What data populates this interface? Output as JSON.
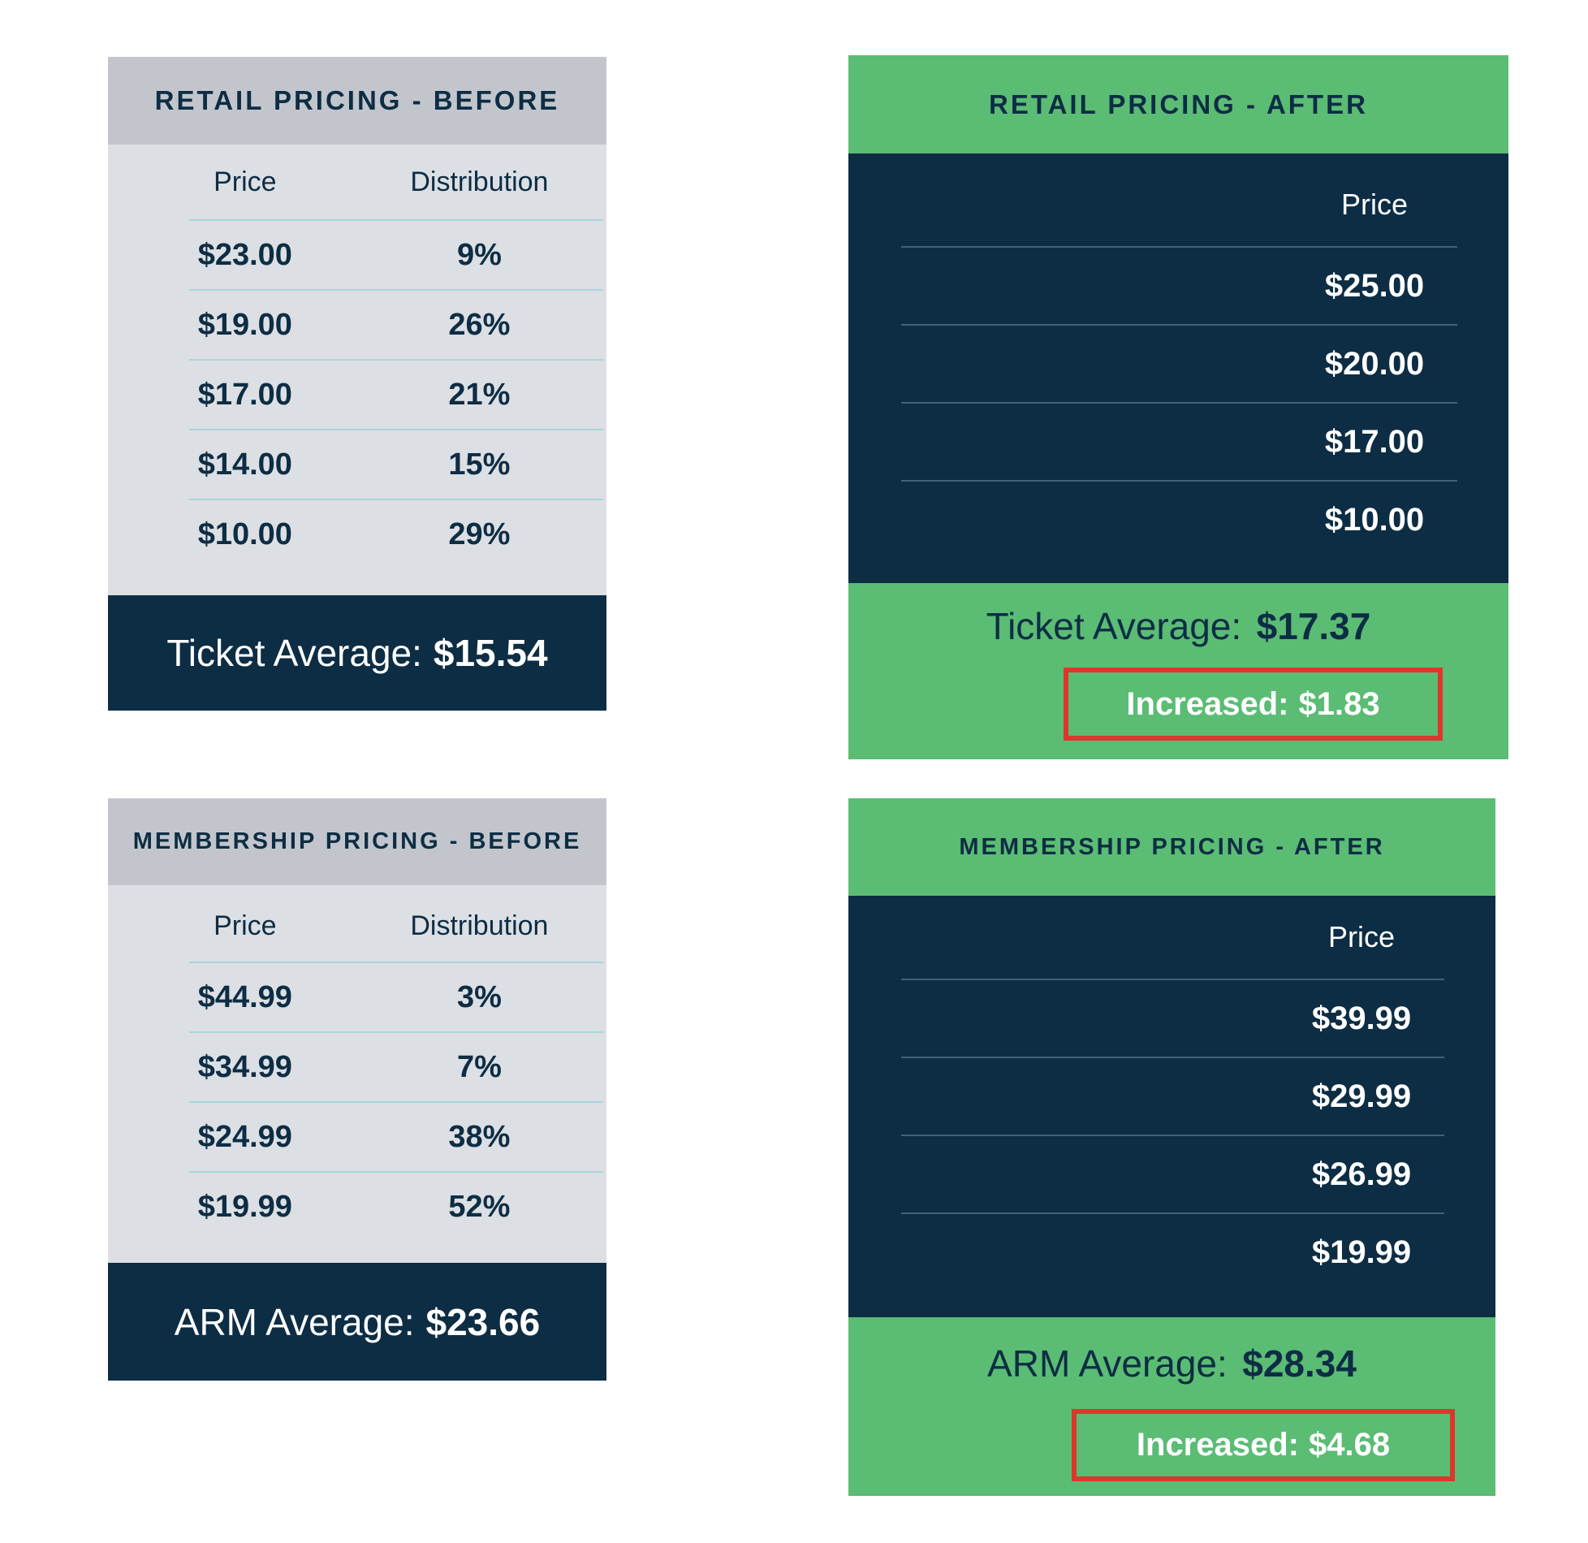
{
  "colors": {
    "navy": "#0d2d44",
    "green": "#5bbc74",
    "header_gray": "#c2c6cc",
    "body_gray": "#dcdfe3",
    "divider_light": "#a9d5d9",
    "divider_dark": "#3f6377",
    "highlight_red": "#e0352b",
    "white": "#ffffff"
  },
  "tables": {
    "retail_before": {
      "title": "RETAIL PRICING - BEFORE",
      "col_price": "Price",
      "col_distribution": "Distribution",
      "rows": [
        {
          "price": "$23.00",
          "share": "9%"
        },
        {
          "price": "$19.00",
          "share": "26%"
        },
        {
          "price": "$17.00",
          "share": "21%"
        },
        {
          "price": "$14.00",
          "share": "15%"
        },
        {
          "price": "$10.00",
          "share": "29%"
        }
      ],
      "footer_label": "Ticket Average:",
      "footer_value": "$15.54"
    },
    "retail_after": {
      "title": "RETAIL PRICING - AFTER",
      "col_price": "Price",
      "rows": [
        "$25.00",
        "$20.00",
        "$17.00",
        "$10.00"
      ],
      "footer_label": "Ticket Average:",
      "footer_value": "$17.37",
      "increase_label": "Increased:",
      "increase_value": "$1.83"
    },
    "membership_before": {
      "title": "MEMBERSHIP PRICING - BEFORE",
      "col_price": "Price",
      "col_distribution": "Distribution",
      "rows": [
        {
          "price": "$44.99",
          "share": "3%"
        },
        {
          "price": "$34.99",
          "share": "7%"
        },
        {
          "price": "$24.99",
          "share": "38%"
        },
        {
          "price": "$19.99",
          "share": "52%"
        }
      ],
      "footer_label": "ARM Average:",
      "footer_value": "$23.66"
    },
    "membership_after": {
      "title": "MEMBERSHIP PRICING - AFTER",
      "col_price": "Price",
      "rows": [
        "$39.99",
        "$29.99",
        "$26.99",
        "$19.99"
      ],
      "footer_label": "ARM Average:",
      "footer_value": "$28.34",
      "increase_label": "Increased:",
      "increase_value": "$4.68"
    }
  },
  "chart_data": [
    {
      "type": "table",
      "title": "RETAIL PRICING - BEFORE",
      "columns": [
        "Price",
        "Distribution"
      ],
      "rows": [
        [
          "$23.00",
          "9%"
        ],
        [
          "$19.00",
          "26%"
        ],
        [
          "$17.00",
          "21%"
        ],
        [
          "$14.00",
          "15%"
        ],
        [
          "$10.00",
          "29%"
        ]
      ],
      "summary": {
        "label": "Ticket Average:",
        "value": "$15.54"
      }
    },
    {
      "type": "table",
      "title": "RETAIL PRICING - AFTER",
      "columns": [
        "Price"
      ],
      "rows": [
        [
          "$25.00"
        ],
        [
          "$20.00"
        ],
        [
          "$17.00"
        ],
        [
          "$10.00"
        ]
      ],
      "summary": {
        "label": "Ticket Average:",
        "value": "$17.37"
      },
      "increase": {
        "label": "Increased:",
        "value": "$1.83"
      }
    },
    {
      "type": "table",
      "title": "MEMBERSHIP PRICING - BEFORE",
      "columns": [
        "Price",
        "Distribution"
      ],
      "rows": [
        [
          "$44.99",
          "3%"
        ],
        [
          "$34.99",
          "7%"
        ],
        [
          "$24.99",
          "38%"
        ],
        [
          "$19.99",
          "52%"
        ]
      ],
      "summary": {
        "label": "ARM Average:",
        "value": "$23.66"
      }
    },
    {
      "type": "table",
      "title": "MEMBERSHIP PRICING - AFTER",
      "columns": [
        "Price"
      ],
      "rows": [
        [
          "$39.99"
        ],
        [
          "$29.99"
        ],
        [
          "$26.99"
        ],
        [
          "$19.99"
        ]
      ],
      "summary": {
        "label": "ARM Average:",
        "value": "$28.34"
      },
      "increase": {
        "label": "Increased:",
        "value": "$4.68"
      }
    }
  ]
}
